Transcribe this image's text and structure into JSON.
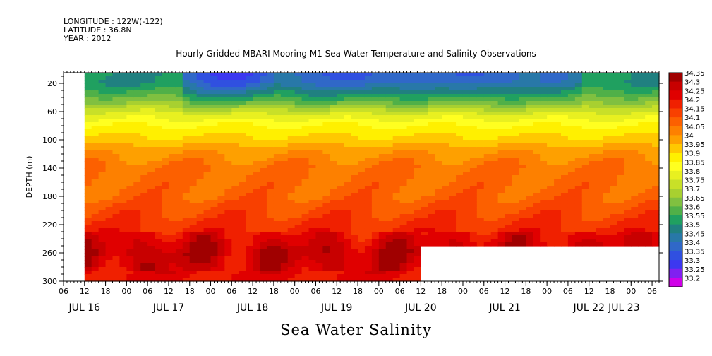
{
  "header": {
    "longitude": "LONGITUDE : 122W(-122)",
    "latitude": "LATITUDE : 36.8N",
    "year": "YEAR : 2012"
  },
  "footer_title": "Sea Water Salinity",
  "chart_data": {
    "type": "heatmap",
    "title": "Hourly Gridded MBARI Mooring M1 Sea Water Temperature and Salinity Observations",
    "xlabel": "",
    "ylabel": "DEPTH (m)",
    "ylim": [
      300,
      5
    ],
    "y_ticks": [
      20,
      60,
      100,
      140,
      180,
      220,
      260,
      300
    ],
    "x_range_hours": [
      "JUL 16 06",
      "JUL 23 08"
    ],
    "x_hour_ticks": [
      "06",
      "12",
      "18",
      "00",
      "06",
      "12",
      "18",
      "00",
      "06",
      "12",
      "18",
      "00",
      "06",
      "12",
      "18",
      "00",
      "06",
      "12",
      "18",
      "00",
      "06",
      "12",
      "18",
      "00",
      "06",
      "12",
      "18",
      "00",
      "06"
    ],
    "x_date_labels": [
      "JUL 16",
      "JUL 17",
      "JUL 18",
      "JUL 19",
      "JUL 20",
      "JUL 21",
      "JUL 22",
      "JUL 23"
    ],
    "colorbar": {
      "levels": [
        "34.35",
        "34.3",
        "34.25",
        "34.2",
        "34.15",
        "34.1",
        "34.05",
        "34",
        "33.95",
        "33.9",
        "33.85",
        "33.8",
        "33.75",
        "33.7",
        "33.65",
        "33.6",
        "33.55",
        "33.5",
        "33.45",
        "33.4",
        "33.35",
        "33.3",
        "33.25",
        "33.2"
      ],
      "colors": [
        "#a00000",
        "#c80000",
        "#e00000",
        "#f02000",
        "#f84000",
        "#fc6000",
        "#fd8000",
        "#fea000",
        "#ffc800",
        "#fff000",
        "#ffff20",
        "#e8f020",
        "#c8e028",
        "#a8d030",
        "#80c040",
        "#50b048",
        "#20a060",
        "#208080",
        "#2878a8",
        "#3068c8",
        "#3050e0",
        "#3c38f0",
        "#8020f0",
        "#d000e8"
      ]
    },
    "depth_profile": [
      {
        "depth": 5,
        "salinity": 33.55
      },
      {
        "depth": 20,
        "salinity": 33.55
      },
      {
        "depth": 40,
        "salinity": 33.65
      },
      {
        "depth": 60,
        "salinity": 33.8
      },
      {
        "depth": 80,
        "salinity": 33.9
      },
      {
        "depth": 100,
        "salinity": 33.97
      },
      {
        "depth": 120,
        "salinity": 34.05
      },
      {
        "depth": 140,
        "salinity": 34.1
      },
      {
        "depth": 180,
        "salinity": 34.12
      },
      {
        "depth": 220,
        "salinity": 34.2
      },
      {
        "depth": 260,
        "salinity": 34.3
      },
      {
        "depth": 300,
        "salinity": 34.25
      }
    ],
    "fresh_surface_events": [
      {
        "start_hour": 34,
        "end_hour": 60,
        "min_salinity": 33.35
      },
      {
        "start_hour": 60,
        "end_hour": 108,
        "min_salinity": 33.4
      },
      {
        "start_hour": 108,
        "end_hour": 132,
        "min_salinity": 33.4
      },
      {
        "start_hour": 132,
        "end_hour": 148,
        "min_salinity": 33.45
      }
    ],
    "data_start_hour": 6,
    "missing_bottom_after_hour": 102,
    "missing_bottom_below_depth": 250,
    "total_hours": 170
  }
}
